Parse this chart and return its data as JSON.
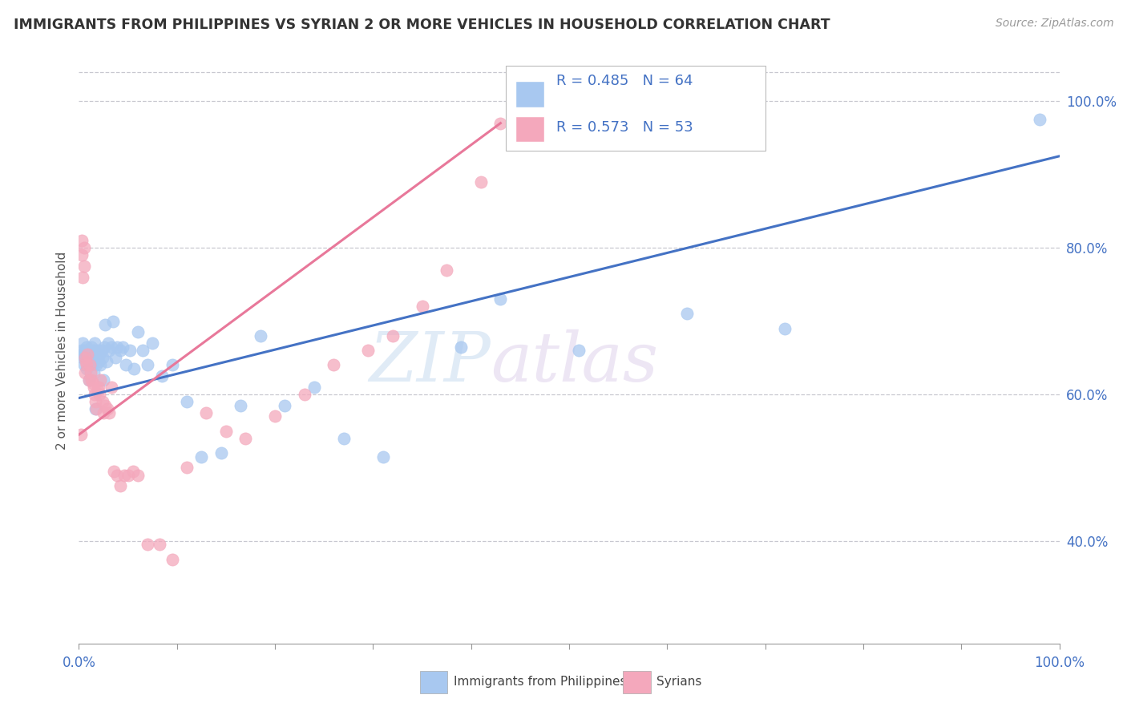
{
  "title": "IMMIGRANTS FROM PHILIPPINES VS SYRIAN 2 OR MORE VEHICLES IN HOUSEHOLD CORRELATION CHART",
  "source": "Source: ZipAtlas.com",
  "ylabel": "2 or more Vehicles in Household",
  "yaxis_labels": [
    "40.0%",
    "60.0%",
    "80.0%",
    "100.0%"
  ],
  "yaxis_values": [
    0.4,
    0.6,
    0.8,
    1.0
  ],
  "xlim": [
    0.0,
    1.0
  ],
  "ylim": [
    0.26,
    1.06
  ],
  "ytop_line": 1.04,
  "philippines_color": "#A8C8F0",
  "syrian_color": "#F4A8BC",
  "philippines_R": 0.485,
  "philippines_N": 64,
  "syrian_R": 0.573,
  "syrian_N": 53,
  "philippines_line_color": "#4472C4",
  "syrian_line_color": "#E8789A",
  "legend_text_color": "#4472C4",
  "grid_color": "#C8C8D0",
  "watermark_zip": "ZIP",
  "watermark_atlas": "atlas",
  "phil_line_x0": 0.0,
  "phil_line_y0": 0.595,
  "phil_line_x1": 1.0,
  "phil_line_y1": 0.925,
  "syr_line_x0": 0.0,
  "syr_line_y0": 0.545,
  "syr_line_x1": 0.43,
  "syr_line_y1": 0.97,
  "philippines_x": [
    0.002,
    0.003,
    0.004,
    0.004,
    0.005,
    0.005,
    0.006,
    0.007,
    0.008,
    0.008,
    0.009,
    0.01,
    0.01,
    0.011,
    0.012,
    0.013,
    0.014,
    0.015,
    0.015,
    0.016,
    0.017,
    0.018,
    0.019,
    0.02,
    0.021,
    0.022,
    0.023,
    0.024,
    0.025,
    0.026,
    0.027,
    0.028,
    0.03,
    0.031,
    0.033,
    0.035,
    0.037,
    0.039,
    0.042,
    0.045,
    0.048,
    0.052,
    0.056,
    0.06,
    0.065,
    0.07,
    0.075,
    0.085,
    0.095,
    0.11,
    0.125,
    0.145,
    0.165,
    0.185,
    0.21,
    0.24,
    0.27,
    0.31,
    0.39,
    0.43,
    0.51,
    0.62,
    0.72,
    0.98
  ],
  "philippines_y": [
    0.655,
    0.66,
    0.67,
    0.65,
    0.655,
    0.64,
    0.66,
    0.655,
    0.665,
    0.635,
    0.65,
    0.62,
    0.66,
    0.64,
    0.65,
    0.665,
    0.645,
    0.66,
    0.63,
    0.67,
    0.58,
    0.64,
    0.66,
    0.645,
    0.655,
    0.64,
    0.66,
    0.65,
    0.62,
    0.665,
    0.695,
    0.645,
    0.67,
    0.66,
    0.665,
    0.7,
    0.65,
    0.665,
    0.66,
    0.665,
    0.64,
    0.66,
    0.635,
    0.685,
    0.66,
    0.64,
    0.67,
    0.625,
    0.64,
    0.59,
    0.515,
    0.52,
    0.585,
    0.68,
    0.585,
    0.61,
    0.54,
    0.515,
    0.665,
    0.73,
    0.66,
    0.71,
    0.69,
    0.975
  ],
  "syrian_x": [
    0.002,
    0.003,
    0.003,
    0.004,
    0.005,
    0.005,
    0.006,
    0.006,
    0.007,
    0.008,
    0.009,
    0.01,
    0.011,
    0.012,
    0.013,
    0.014,
    0.015,
    0.016,
    0.017,
    0.018,
    0.019,
    0.02,
    0.021,
    0.022,
    0.024,
    0.025,
    0.027,
    0.029,
    0.031,
    0.033,
    0.036,
    0.039,
    0.042,
    0.046,
    0.05,
    0.055,
    0.06,
    0.07,
    0.082,
    0.095,
    0.11,
    0.13,
    0.15,
    0.17,
    0.2,
    0.23,
    0.26,
    0.295,
    0.32,
    0.35,
    0.375,
    0.41,
    0.43
  ],
  "syrian_y": [
    0.545,
    0.81,
    0.79,
    0.76,
    0.8,
    0.775,
    0.65,
    0.63,
    0.645,
    0.64,
    0.655,
    0.62,
    0.64,
    0.63,
    0.62,
    0.615,
    0.61,
    0.6,
    0.59,
    0.58,
    0.605,
    0.61,
    0.6,
    0.62,
    0.59,
    0.575,
    0.585,
    0.58,
    0.575,
    0.61,
    0.495,
    0.49,
    0.475,
    0.49,
    0.49,
    0.495,
    0.49,
    0.395,
    0.395,
    0.375,
    0.5,
    0.575,
    0.55,
    0.54,
    0.57,
    0.6,
    0.64,
    0.66,
    0.68,
    0.72,
    0.77,
    0.89,
    0.97
  ]
}
